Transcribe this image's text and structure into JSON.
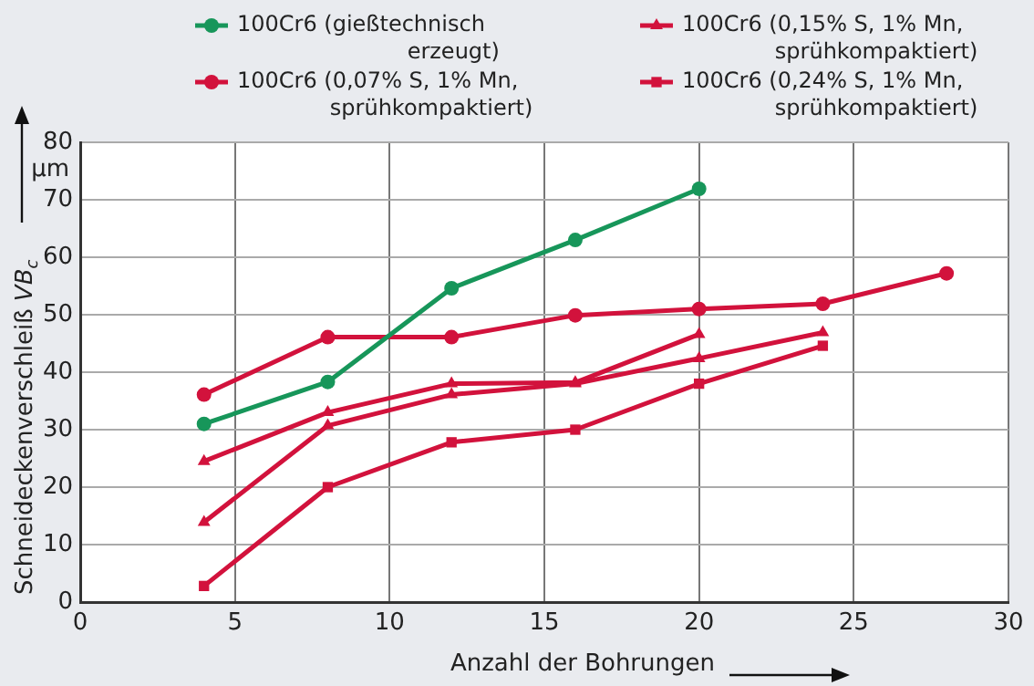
{
  "chart_data": {
    "type": "line",
    "xlabel": "Anzahl der Bohrungen",
    "ylabel": "Schneideckenverschleiß VB$_{c}$",
    "annotations": [
      "µm"
    ],
    "x": [
      4,
      8,
      12,
      16,
      20,
      24,
      28
    ],
    "series": [
      {
        "name": "100Cr6 (gießtechnisch erzeugt)",
        "color": "#17965a",
        "marker": "circle",
        "values": [
          31,
          38.3,
          54.6,
          63,
          71.9,
          null,
          null
        ]
      },
      {
        "name": "100Cr6 (0,07% S, 1% Mn, sprühkompaktiert)",
        "color": "#d2123c",
        "marker": "circle",
        "values": [
          36.1,
          46.1,
          46.1,
          49.9,
          51,
          51.9,
          57.2
        ]
      },
      {
        "name": "100Cr6 (0,15% S, 1% Mn, sprühkompaktiert)",
        "color": "#d2123c",
        "marker": "triangle",
        "values": [
          24.5,
          33,
          38,
          38.2,
          46.6,
          null,
          null
        ]
      },
      {
        "color": "#d2123c",
        "marker": "triangle",
        "values": [
          13.9,
          30.7,
          36.1,
          38,
          42.4,
          46.9,
          null
        ]
      },
      {
        "name": "100Cr6 (0,24% S, 1% Mn, sprühkompaktiert)",
        "color": "#d2123c",
        "marker": "square",
        "values": [
          2.8,
          20,
          27.8,
          30,
          38,
          44.6,
          null
        ]
      }
    ],
    "xlim": [
      0,
      30
    ],
    "xticks": [
      0,
      5,
      10,
      15,
      20,
      25,
      30
    ],
    "ylim": [
      0,
      80
    ],
    "yticks": [
      0,
      10,
      20,
      30,
      40,
      50,
      60,
      70,
      80
    ],
    "grid": true,
    "legend": "top",
    "line_style": "solid"
  }
}
